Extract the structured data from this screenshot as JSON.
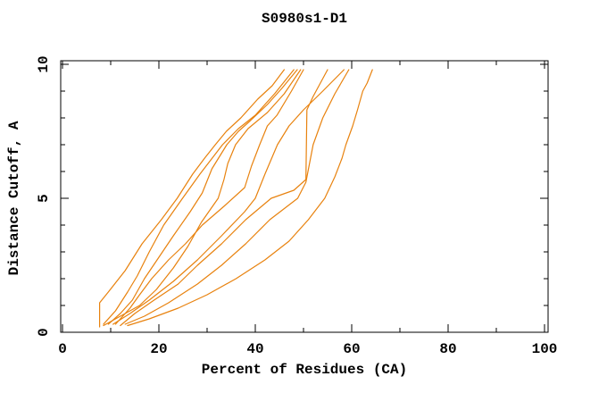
{
  "chart_data": {
    "type": "line",
    "title": "S0980s1-D1",
    "xlabel": "Percent of Residues (CA)",
    "ylabel": "Distance Cutoff, A",
    "xlim": [
      0,
      100
    ],
    "ylim": [
      0,
      10
    ],
    "grid": false,
    "legend": "none",
    "line_color": "#e8820e",
    "axis_color": "#000000",
    "background_color": "#ffffff",
    "xticks": {
      "major": [
        0,
        20,
        40,
        60,
        80,
        100
      ],
      "labels": [
        "0",
        "20",
        "40",
        "60",
        "80",
        "100"
      ],
      "minor": [
        10,
        30,
        50,
        70,
        90
      ]
    },
    "yticks": {
      "major": [
        0,
        5,
        10
      ],
      "labels": [
        "0",
        "5",
        "10"
      ],
      "minor": [
        1,
        2,
        3,
        4,
        6,
        7,
        8,
        9
      ]
    },
    "series": [
      {
        "points": [
          [
            7.7,
            0.2
          ],
          [
            7.7,
            1.1
          ],
          [
            9.5,
            1.5
          ],
          [
            13,
            2.3
          ],
          [
            16.5,
            3.3
          ],
          [
            20.5,
            4.2
          ],
          [
            23.8,
            5.0
          ],
          [
            27,
            5.9
          ],
          [
            29.5,
            6.5
          ],
          [
            31.7,
            7.0
          ],
          [
            34,
            7.5
          ],
          [
            37,
            8.0
          ],
          [
            40.5,
            8.7
          ],
          [
            43.5,
            9.2
          ],
          [
            46,
            9.8
          ]
        ]
      },
      {
        "points": [
          [
            8.5,
            0.3
          ],
          [
            11,
            0.8
          ],
          [
            13.5,
            1.5
          ],
          [
            15.5,
            2.1
          ],
          [
            18,
            3.0
          ],
          [
            21,
            4.0
          ],
          [
            24.9,
            5.0
          ],
          [
            28.5,
            5.9
          ],
          [
            33.2,
            7.0
          ],
          [
            36.5,
            7.6
          ],
          [
            40,
            8.1
          ],
          [
            44,
            8.9
          ],
          [
            48,
            9.8
          ]
        ]
      },
      {
        "points": [
          [
            9.5,
            0.3
          ],
          [
            12,
            0.7
          ],
          [
            14.5,
            1.2
          ],
          [
            17,
            2.0
          ],
          [
            20,
            2.8
          ],
          [
            23,
            3.6
          ],
          [
            26.5,
            4.5
          ],
          [
            29,
            5.2
          ],
          [
            31,
            6.1
          ],
          [
            34.1,
            7.0
          ],
          [
            36.5,
            7.5
          ],
          [
            39,
            7.9
          ],
          [
            42.5,
            8.5
          ],
          [
            45.5,
            9.1
          ],
          [
            48.7,
            9.8
          ]
        ]
      },
      {
        "points": [
          [
            8.5,
            0.25
          ],
          [
            12,
            0.6
          ],
          [
            16,
            1.0
          ],
          [
            19.5,
            1.6
          ],
          [
            23,
            2.4
          ],
          [
            26,
            3.2
          ],
          [
            28.8,
            4.1
          ],
          [
            32.3,
            5.0
          ],
          [
            33.5,
            5.7
          ],
          [
            34.3,
            6.3
          ],
          [
            35.9,
            7.0
          ],
          [
            38.5,
            7.6
          ],
          [
            42.5,
            8.2
          ],
          [
            46,
            8.9
          ],
          [
            49.4,
            9.8
          ]
        ]
      },
      {
        "points": [
          [
            11,
            0.3
          ],
          [
            14,
            0.9
          ],
          [
            16,
            1.4
          ],
          [
            18.5,
            2.0
          ],
          [
            22,
            2.7
          ],
          [
            25.5,
            3.3
          ],
          [
            29,
            4.0
          ],
          [
            33.5,
            4.7
          ],
          [
            37.8,
            5.4
          ],
          [
            39.2,
            6.2
          ],
          [
            40.9,
            7.0
          ],
          [
            42.5,
            7.7
          ],
          [
            44.5,
            8.1
          ],
          [
            47.5,
            9.0
          ],
          [
            50,
            9.8
          ]
        ]
      },
      {
        "points": [
          [
            12,
            0.25
          ],
          [
            15,
            0.7
          ],
          [
            19,
            1.2
          ],
          [
            24,
            1.8
          ],
          [
            28,
            2.5
          ],
          [
            33,
            3.3
          ],
          [
            38,
            4.2
          ],
          [
            43.3,
            5.0
          ],
          [
            48,
            5.3
          ],
          [
            50.5,
            5.7
          ],
          [
            50.7,
            8.3
          ],
          [
            52,
            8.8
          ],
          [
            55,
            9.8
          ]
        ]
      },
      {
        "points": [
          [
            10.5,
            0.3
          ],
          [
            14,
            0.7
          ],
          [
            18,
            1.2
          ],
          [
            23,
            1.9
          ],
          [
            28,
            2.7
          ],
          [
            33,
            3.6
          ],
          [
            37.8,
            4.5
          ],
          [
            40,
            5.0
          ],
          [
            42,
            5.9
          ],
          [
            44.6,
            7.0
          ],
          [
            47,
            7.7
          ],
          [
            50,
            8.3
          ],
          [
            54,
            9.0
          ],
          [
            58.4,
            9.8
          ]
        ]
      },
      {
        "points": [
          [
            13,
            0.3
          ],
          [
            17,
            0.6
          ],
          [
            22,
            1.1
          ],
          [
            28,
            1.8
          ],
          [
            33,
            2.5
          ],
          [
            38,
            3.3
          ],
          [
            43,
            4.2
          ],
          [
            48.8,
            5.0
          ],
          [
            50.5,
            5.6
          ],
          [
            52,
            7.0
          ],
          [
            54,
            8.0
          ],
          [
            56.5,
            8.9
          ],
          [
            59.4,
            9.8
          ]
        ]
      },
      {
        "points": [
          [
            13.5,
            0.25
          ],
          [
            18,
            0.5
          ],
          [
            24,
            0.9
          ],
          [
            30,
            1.4
          ],
          [
            36,
            2.0
          ],
          [
            42,
            2.7
          ],
          [
            47,
            3.4
          ],
          [
            51,
            4.2
          ],
          [
            54.4,
            5.0
          ],
          [
            56.5,
            5.8
          ],
          [
            58,
            6.5
          ],
          [
            58.8,
            7.0
          ],
          [
            60.2,
            7.7
          ],
          [
            61.2,
            8.3
          ],
          [
            62.3,
            9.0
          ],
          [
            63.2,
            9.3
          ],
          [
            64.3,
            9.8
          ]
        ]
      }
    ]
  }
}
